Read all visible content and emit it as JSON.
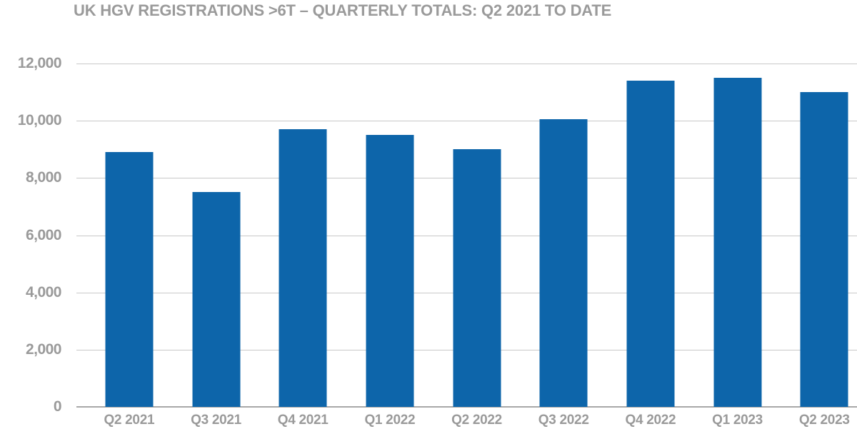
{
  "chart_data": {
    "type": "bar",
    "title": "UK HGV REGISTRATIONS >6T – QUARTERLY TOTALS: Q2 2021 TO DATE",
    "categories": [
      "Q2 2021",
      "Q3 2021",
      "Q4 2021",
      "Q1 2022",
      "Q2 2022",
      "Q3 2022",
      "Q4 2022",
      "Q1 2023",
      "Q2 2023"
    ],
    "values": [
      8900,
      7500,
      9700,
      9500,
      9000,
      10050,
      11400,
      11500,
      11000
    ],
    "xlabel": "",
    "ylabel": "",
    "ylim": [
      0,
      12000
    ],
    "y_ticks": [
      {
        "value": 0,
        "label": "0"
      },
      {
        "value": 2000,
        "label": "2,000"
      },
      {
        "value": 4000,
        "label": "4,000"
      },
      {
        "value": 6000,
        "label": "6,000"
      },
      {
        "value": 8000,
        "label": "8,000"
      },
      {
        "value": 10000,
        "label": "10,000"
      },
      {
        "value": 12000,
        "label": "12,000"
      }
    ],
    "grid": "horizontal-on",
    "legend": "none",
    "colors": {
      "bar": "#0d65aa",
      "gridline": "#c8c8c8",
      "zero_line": "#a8a8a8",
      "text": "#9a9a9a",
      "background": "#ffffff"
    }
  }
}
